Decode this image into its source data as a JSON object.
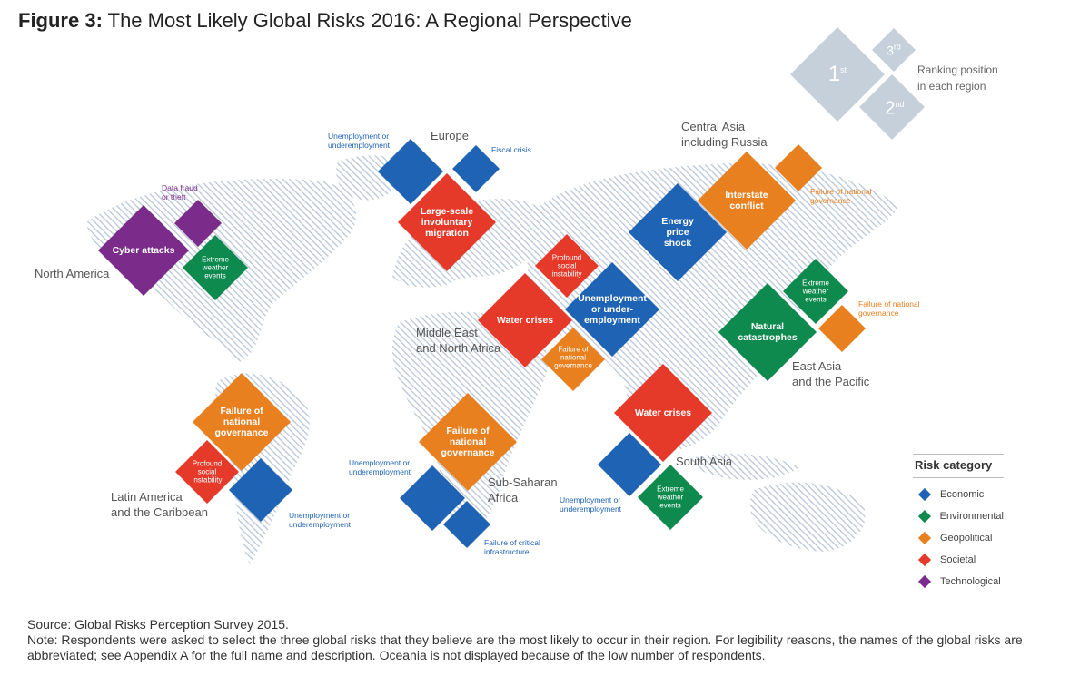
{
  "title": {
    "prefix": "Figure 3:",
    "text": "The Most Likely Global Risks 2016: A Regional Perspective"
  },
  "colors": {
    "Economic": "#1f63b4",
    "Environmental": "#0e8a4e",
    "Geopolitical": "#e8801f",
    "Societal": "#e53a2a",
    "Technological": "#7b2c8a"
  },
  "ranking": {
    "first": "1",
    "first_suffix": "st",
    "second": "2",
    "second_suffix": "nd",
    "third": "3",
    "third_suffix": "rd",
    "label_line1": "Ranking position",
    "label_line2": "in each region"
  },
  "regions": {
    "north_america": "North America",
    "europe": "Europe",
    "central_asia_1": "Central Asia",
    "central_asia_2": "including Russia",
    "mena_1": "Middle East",
    "mena_2": "and North Africa",
    "east_asia_1": "East Asia",
    "east_asia_2": "and the Pacific",
    "latam_1": "Latin America",
    "latam_2": "and the Caribbean",
    "ssa_1": "Sub-Saharan",
    "ssa_2": "Africa",
    "south_asia": "South Asia"
  },
  "risks": {
    "na_1": {
      "label": "Cyber attacks",
      "category": "Technological",
      "rank": 1
    },
    "na_2": {
      "label": "Extreme weather events",
      "category": "Environmental",
      "rank": 2
    },
    "na_3": {
      "label": "Data fraud or theft",
      "category": "Technological",
      "rank": 3
    },
    "eu_1": {
      "label": "Large-scale involuntary migration",
      "category": "Societal",
      "rank": 1
    },
    "eu_2": {
      "label": "Unemployment or underemployment",
      "category": "Economic",
      "rank": 2
    },
    "eu_3": {
      "label": "Fiscal crisis",
      "category": "Economic",
      "rank": 3
    },
    "ca_1": {
      "label": "Energy price shock",
      "category": "Economic",
      "rank": 1
    },
    "ca_2": {
      "label": "Interstate conflict",
      "category": "Geopolitical",
      "rank": 2
    },
    "ca_3": {
      "label": "Failure of national governance",
      "category": "Geopolitical",
      "rank": 3
    },
    "me_1": {
      "label": "Water crises",
      "category": "Societal",
      "rank": 1
    },
    "me_2": {
      "label": "Failure of national governance",
      "category": "Geopolitical",
      "rank": 2
    },
    "me_3": {
      "label": "Profound social instability",
      "category": "Societal",
      "rank": 3
    },
    "me_b": {
      "label": "Unemployment or under-employment",
      "category": "Economic",
      "rank": 1
    },
    "ea_1": {
      "label": "Natural catastrophes",
      "category": "Environmental",
      "rank": 1
    },
    "ea_2": {
      "label": "Extreme weather events",
      "category": "Environmental",
      "rank": 3
    },
    "ea_3": {
      "label": "Failure of national governance",
      "category": "Geopolitical",
      "rank": 2
    },
    "la_1": {
      "label": "Failure of national governance",
      "category": "Geopolitical",
      "rank": 1
    },
    "la_2": {
      "label": "Profound social instability",
      "category": "Societal",
      "rank": 3
    },
    "la_3": {
      "label": "Unemployment or underemployment",
      "category": "Economic",
      "rank": 2
    },
    "ssa_1": {
      "label": "Failure of national governance",
      "category": "Geopolitical",
      "rank": 1
    },
    "ssa_2": {
      "label": "Unemployment or underemployment",
      "category": "Economic",
      "rank": 2
    },
    "ssa_3": {
      "label": "Failure of critical infrastructure",
      "category": "Economic",
      "rank": 3
    },
    "sa_1": {
      "label": "Water crises",
      "category": "Societal",
      "rank": 1
    },
    "sa_2": {
      "label": "Unemployment or underemployment",
      "category": "Economic",
      "rank": 2
    },
    "sa_3": {
      "label": "Extreme weather events",
      "category": "Environmental",
      "rank": 3
    }
  },
  "text": {
    "eu_2_ext_1": "Unemployment or",
    "eu_2_ext_2": "underemployment",
    "eu_3_ext": "Fiscal crisis",
    "na_3_ext_1": "Data fraud",
    "na_3_ext_2": "or theft",
    "na_1_in": "Cyber attacks",
    "na_2_in_1": "Extreme",
    "na_2_in_2": "weather",
    "na_2_in_3": "events",
    "eu_1_in_1": "Large-scale",
    "eu_1_in_2": "involuntary",
    "eu_1_in_3": "migration",
    "ca_1_in_1": "Energy",
    "ca_1_in_2": "price",
    "ca_1_in_3": "shock",
    "ca_2_in_1": "Interstate",
    "ca_2_in_2": "conflict",
    "ca_3_ext_1": "Failure of national",
    "ca_3_ext_2": "governance",
    "me_3_in_1": "Profound",
    "me_3_in_2": "social",
    "me_3_in_3": "instability",
    "me_1_in": "Water crises",
    "me_b_in_1": "Unemployment",
    "me_b_in_2": "or under-",
    "me_b_in_3": "employment",
    "me_2_in_1": "Failure of",
    "me_2_in_2": "national",
    "me_2_in_3": "governance",
    "ea_2_in_1": "Extreme",
    "ea_2_in_2": "weather",
    "ea_2_in_3": "events",
    "ea_1_in_1": "Natural",
    "ea_1_in_2": "catastrophes",
    "ea_3_ext_1": "Failure of national",
    "ea_3_ext_2": "governance",
    "la_1_in_1": "Failure of",
    "la_1_in_2": "national",
    "la_1_in_3": "governance",
    "la_2_in_1": "Profound",
    "la_2_in_2": "social",
    "la_2_in_3": "instability",
    "la_3_ext_1": "Unemployment or",
    "la_3_ext_2": "underemployment",
    "ssa_1_in_1": "Failure of",
    "ssa_1_in_2": "national",
    "ssa_1_in_3": "governance",
    "ssa_2_ext_1": "Unemployment or",
    "ssa_2_ext_2": "underemployment",
    "ssa_3_ext_1": "Failure of critical",
    "ssa_3_ext_2": "infrastructure",
    "sa_1_in": "Water crises",
    "sa_2_ext_1": "Unemployment or",
    "sa_2_ext_2": "underemployment",
    "sa_3_in_1": "Extreme",
    "sa_3_in_2": "weather",
    "sa_3_in_3": "events"
  },
  "legend": {
    "title": "Risk category",
    "items": [
      {
        "name": "Economic",
        "color": "#1f63b4"
      },
      {
        "name": "Environmental",
        "color": "#0e8a4e"
      },
      {
        "name": "Geopolitical",
        "color": "#e8801f"
      },
      {
        "name": "Societal",
        "color": "#e53a2a"
      },
      {
        "name": "Technological",
        "color": "#7b2c8a"
      }
    ]
  },
  "footer": {
    "source": "Source: Global Risks Perception Survey 2015.",
    "note": "Note: Respondents were asked to select the three global risks that they believe are the most likely to occur in their region. For legibility reasons, the names of the global risks are abbreviated; see Appendix A for the full name and description. Oceania is not displayed because of the low number of respondents."
  }
}
